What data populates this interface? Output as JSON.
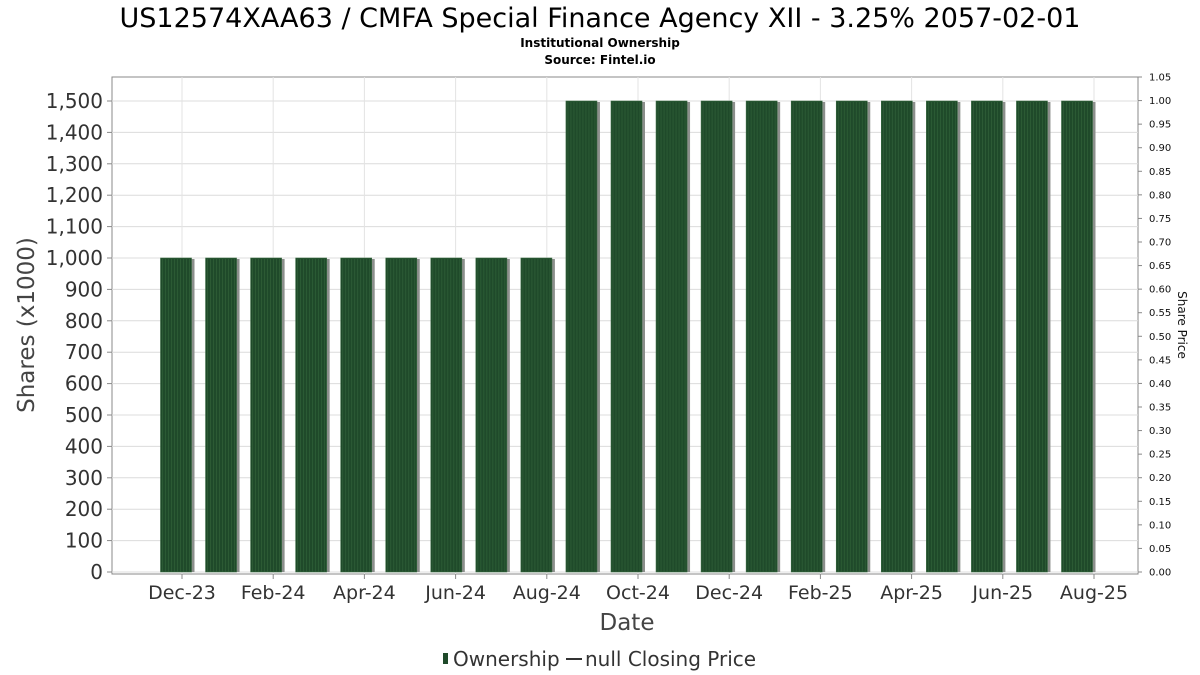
{
  "chart_data": {
    "type": "bar",
    "title": "US12574XAA63 / CMFA Special Finance Agency XII - 3.25% 2057-02-01",
    "subtitle": "Institutional Ownership",
    "source": "Source: Fintel.io",
    "xlabel": "Date",
    "ylabel": "Shares (x1000)",
    "y2label": "Share Price",
    "ylim": [
      0,
      1500
    ],
    "y2lim": [
      0,
      1.05
    ],
    "yticks": [
      "0",
      "100",
      "200",
      "300",
      "400",
      "500",
      "600",
      "700",
      "800",
      "900",
      "1,000",
      "1,100",
      "1,200",
      "1,300",
      "1,400",
      "1,500"
    ],
    "y2ticks": [
      "0.00",
      "0.05",
      "0.10",
      "0.15",
      "0.20",
      "0.25",
      "0.30",
      "0.35",
      "0.40",
      "0.45",
      "0.50",
      "0.55",
      "0.60",
      "0.65",
      "0.70",
      "0.75",
      "0.80",
      "0.85",
      "0.90",
      "0.95",
      "1.00",
      "1.05"
    ],
    "xticks": [
      "Dec-23",
      "Feb-24",
      "Apr-24",
      "Jun-24",
      "Aug-24",
      "Oct-24",
      "Dec-24",
      "Feb-25",
      "Apr-25",
      "Jun-25",
      "Aug-25"
    ],
    "grid": true,
    "legend_position": "bottom-center",
    "series": [
      {
        "name": "Ownership",
        "color": "#1f4a2a",
        "values": [
          1000,
          1000,
          1000,
          1000,
          1000,
          1000,
          1000,
          1000,
          1000,
          1500,
          1500,
          1500,
          1500,
          1500,
          1500,
          1500,
          1500,
          1500,
          1500,
          1500,
          1500
        ]
      }
    ],
    "legend": [
      {
        "label": "Ownership",
        "color": "#1f4a2a",
        "marker": "bar"
      },
      {
        "label": "null Closing Price",
        "color": "#333333",
        "marker": "line"
      }
    ]
  }
}
